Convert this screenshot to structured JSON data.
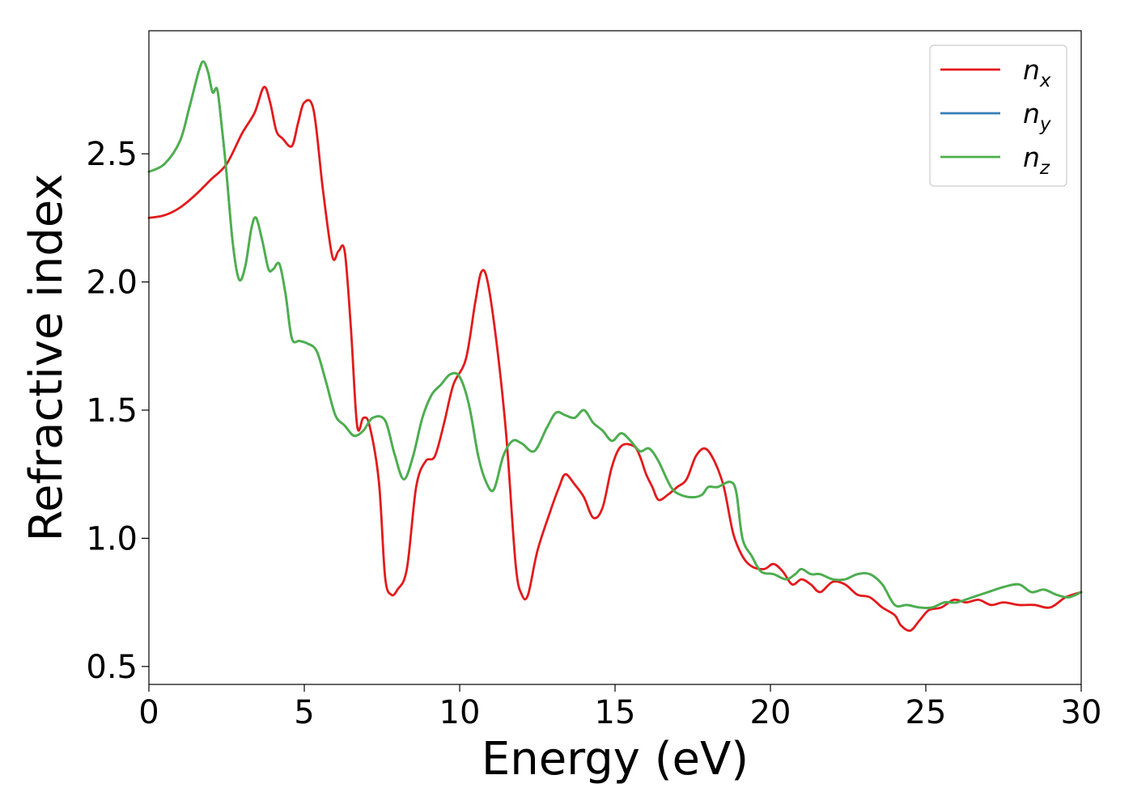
{
  "chart_data": {
    "type": "line",
    "xlabel": "Energy (eV)",
    "ylabel": "Refractive index",
    "xlim": [
      0,
      30
    ],
    "ylim": [
      0.43,
      2.98
    ],
    "x_ticks": [
      0,
      5,
      10,
      15,
      20,
      25,
      30
    ],
    "y_ticks": [
      0.5,
      1.0,
      1.5,
      2.0,
      2.5
    ],
    "x_tick_labels": [
      "0",
      "5",
      "10",
      "15",
      "20",
      "25",
      "30"
    ],
    "y_tick_labels": [
      "0.5",
      "1.0",
      "1.5",
      "2.0",
      "2.5"
    ],
    "grid": false,
    "legend_position": "top-right",
    "series": [
      {
        "name": "n_x",
        "label_base": "n",
        "label_sub": "x",
        "color": "#e31a1c",
        "points": [
          [
            0.0,
            2.25
          ],
          [
            0.5,
            2.26
          ],
          [
            1.0,
            2.29
          ],
          [
            1.5,
            2.34
          ],
          [
            2.0,
            2.4
          ],
          [
            2.5,
            2.46
          ],
          [
            3.0,
            2.58
          ],
          [
            3.4,
            2.66
          ],
          [
            3.7,
            2.76
          ],
          [
            3.9,
            2.7
          ],
          [
            4.1,
            2.59
          ],
          [
            4.3,
            2.56
          ],
          [
            4.6,
            2.53
          ],
          [
            4.8,
            2.62
          ],
          [
            5.0,
            2.7
          ],
          [
            5.3,
            2.67
          ],
          [
            5.6,
            2.36
          ],
          [
            5.9,
            2.1
          ],
          [
            6.1,
            2.12
          ],
          [
            6.3,
            2.12
          ],
          [
            6.5,
            1.82
          ],
          [
            6.7,
            1.44
          ],
          [
            6.9,
            1.47
          ],
          [
            7.1,
            1.44
          ],
          [
            7.4,
            1.22
          ],
          [
            7.6,
            0.85
          ],
          [
            7.8,
            0.78
          ],
          [
            8.0,
            0.8
          ],
          [
            8.3,
            0.88
          ],
          [
            8.6,
            1.2
          ],
          [
            8.9,
            1.3
          ],
          [
            9.2,
            1.32
          ],
          [
            9.5,
            1.45
          ],
          [
            9.8,
            1.6
          ],
          [
            10.2,
            1.7
          ],
          [
            10.5,
            1.92
          ],
          [
            10.7,
            2.04
          ],
          [
            10.9,
            2.0
          ],
          [
            11.2,
            1.75
          ],
          [
            11.5,
            1.4
          ],
          [
            11.8,
            0.9
          ],
          [
            12.0,
            0.78
          ],
          [
            12.2,
            0.78
          ],
          [
            12.5,
            0.95
          ],
          [
            12.9,
            1.1
          ],
          [
            13.2,
            1.2
          ],
          [
            13.4,
            1.25
          ],
          [
            13.7,
            1.21
          ],
          [
            14.0,
            1.16
          ],
          [
            14.3,
            1.08
          ],
          [
            14.6,
            1.12
          ],
          [
            14.9,
            1.28
          ],
          [
            15.2,
            1.36
          ],
          [
            15.6,
            1.36
          ],
          [
            15.8,
            1.32
          ],
          [
            16.0,
            1.25
          ],
          [
            16.2,
            1.2
          ],
          [
            16.4,
            1.15
          ],
          [
            16.7,
            1.17
          ],
          [
            17.0,
            1.2
          ],
          [
            17.3,
            1.23
          ],
          [
            17.6,
            1.32
          ],
          [
            17.9,
            1.35
          ],
          [
            18.2,
            1.3
          ],
          [
            18.5,
            1.2
          ],
          [
            18.8,
            1.02
          ],
          [
            19.1,
            0.93
          ],
          [
            19.4,
            0.89
          ],
          [
            19.8,
            0.88
          ],
          [
            20.1,
            0.9
          ],
          [
            20.4,
            0.87
          ],
          [
            20.7,
            0.82
          ],
          [
            21.0,
            0.84
          ],
          [
            21.3,
            0.82
          ],
          [
            21.6,
            0.79
          ],
          [
            22.0,
            0.83
          ],
          [
            22.4,
            0.82
          ],
          [
            22.8,
            0.78
          ],
          [
            23.2,
            0.77
          ],
          [
            23.6,
            0.73
          ],
          [
            24.0,
            0.7
          ],
          [
            24.2,
            0.66
          ],
          [
            24.5,
            0.64
          ],
          [
            24.8,
            0.68
          ],
          [
            25.1,
            0.72
          ],
          [
            25.5,
            0.73
          ],
          [
            25.9,
            0.76
          ],
          [
            26.3,
            0.75
          ],
          [
            26.7,
            0.76
          ],
          [
            27.1,
            0.74
          ],
          [
            27.5,
            0.75
          ],
          [
            28.0,
            0.74
          ],
          [
            28.5,
            0.74
          ],
          [
            29.0,
            0.73
          ],
          [
            29.5,
            0.77
          ],
          [
            30.0,
            0.79
          ]
        ]
      },
      {
        "name": "n_y",
        "label_base": "n",
        "label_sub": "y",
        "color": "#377eb8",
        "same_as": "n_z"
      },
      {
        "name": "n_z",
        "label_base": "n",
        "label_sub": "z",
        "color": "#4daf4a",
        "points": [
          [
            0.0,
            2.43
          ],
          [
            0.5,
            2.46
          ],
          [
            1.0,
            2.55
          ],
          [
            1.3,
            2.68
          ],
          [
            1.6,
            2.82
          ],
          [
            1.75,
            2.86
          ],
          [
            1.9,
            2.82
          ],
          [
            2.05,
            2.74
          ],
          [
            2.2,
            2.75
          ],
          [
            2.35,
            2.6
          ],
          [
            2.5,
            2.42
          ],
          [
            2.7,
            2.15
          ],
          [
            2.9,
            2.01
          ],
          [
            3.1,
            2.06
          ],
          [
            3.3,
            2.21
          ],
          [
            3.45,
            2.25
          ],
          [
            3.65,
            2.16
          ],
          [
            3.85,
            2.05
          ],
          [
            4.0,
            2.05
          ],
          [
            4.2,
            2.07
          ],
          [
            4.4,
            1.95
          ],
          [
            4.6,
            1.78
          ],
          [
            4.85,
            1.77
          ],
          [
            5.1,
            1.76
          ],
          [
            5.4,
            1.73
          ],
          [
            5.7,
            1.61
          ],
          [
            6.0,
            1.48
          ],
          [
            6.3,
            1.44
          ],
          [
            6.6,
            1.4
          ],
          [
            6.9,
            1.42
          ],
          [
            7.2,
            1.47
          ],
          [
            7.6,
            1.46
          ],
          [
            7.9,
            1.33
          ],
          [
            8.2,
            1.23
          ],
          [
            8.5,
            1.32
          ],
          [
            8.8,
            1.47
          ],
          [
            9.1,
            1.56
          ],
          [
            9.4,
            1.6
          ],
          [
            9.7,
            1.64
          ],
          [
            10.0,
            1.63
          ],
          [
            10.3,
            1.52
          ],
          [
            10.6,
            1.32
          ],
          [
            10.85,
            1.22
          ],
          [
            11.1,
            1.19
          ],
          [
            11.4,
            1.32
          ],
          [
            11.7,
            1.38
          ],
          [
            12.0,
            1.37
          ],
          [
            12.4,
            1.34
          ],
          [
            12.8,
            1.43
          ],
          [
            13.1,
            1.49
          ],
          [
            13.4,
            1.48
          ],
          [
            13.7,
            1.47
          ],
          [
            14.0,
            1.5
          ],
          [
            14.3,
            1.45
          ],
          [
            14.6,
            1.42
          ],
          [
            14.9,
            1.38
          ],
          [
            15.2,
            1.41
          ],
          [
            15.5,
            1.38
          ],
          [
            15.8,
            1.34
          ],
          [
            16.1,
            1.35
          ],
          [
            16.4,
            1.3
          ],
          [
            16.8,
            1.2
          ],
          [
            17.1,
            1.17
          ],
          [
            17.5,
            1.16
          ],
          [
            17.8,
            1.17
          ],
          [
            18.0,
            1.2
          ],
          [
            18.3,
            1.2
          ],
          [
            18.7,
            1.22
          ],
          [
            18.9,
            1.18
          ],
          [
            19.1,
            1.0
          ],
          [
            19.4,
            0.93
          ],
          [
            19.7,
            0.87
          ],
          [
            20.1,
            0.86
          ],
          [
            20.5,
            0.84
          ],
          [
            20.8,
            0.86
          ],
          [
            21.0,
            0.88
          ],
          [
            21.3,
            0.86
          ],
          [
            21.6,
            0.86
          ],
          [
            22.0,
            0.84
          ],
          [
            22.4,
            0.84
          ],
          [
            22.8,
            0.86
          ],
          [
            23.2,
            0.86
          ],
          [
            23.6,
            0.82
          ],
          [
            24.0,
            0.74
          ],
          [
            24.4,
            0.74
          ],
          [
            24.8,
            0.73
          ],
          [
            25.2,
            0.73
          ],
          [
            25.6,
            0.75
          ],
          [
            26.0,
            0.75
          ],
          [
            26.5,
            0.77
          ],
          [
            27.0,
            0.79
          ],
          [
            27.5,
            0.81
          ],
          [
            28.0,
            0.82
          ],
          [
            28.4,
            0.79
          ],
          [
            28.8,
            0.8
          ],
          [
            29.2,
            0.78
          ],
          [
            29.6,
            0.77
          ],
          [
            30.0,
            0.79
          ]
        ]
      }
    ]
  }
}
